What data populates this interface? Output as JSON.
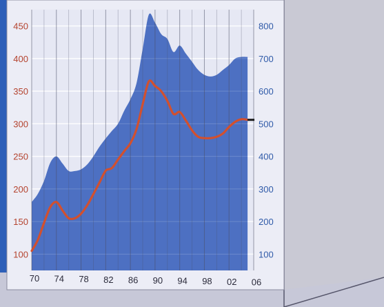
{
  "chart_data": {
    "type": "area",
    "title": "",
    "xlabel": "",
    "ylabel_left": "",
    "ylabel_right": "",
    "x_ticks": [
      "70",
      "74",
      "78",
      "82",
      "86",
      "90",
      "94",
      "98",
      "02",
      "06"
    ],
    "y_left_ticks": [
      "100",
      "150",
      "200",
      "250",
      "300",
      "350",
      "400",
      "450"
    ],
    "y_right_ticks": [
      "100",
      "200",
      "300",
      "400",
      "500",
      "600",
      "700",
      "800"
    ],
    "xlim": [
      1970,
      2006
    ],
    "ylim_left": [
      75,
      475
    ],
    "ylim_right": [
      50,
      850
    ],
    "grid": true,
    "colors": {
      "area": "#4d70c2",
      "line": "#d2502e",
      "left_ticks": "#b4432e",
      "right_ticks": "#2f5aa8",
      "x_ticks": "#2a2a3a",
      "panel": "#ecedf6",
      "frame_accent": "#2d5fb8"
    },
    "series": [
      {
        "axis": "right",
        "style": "area",
        "x": [
          1970,
          1971,
          1972,
          1973,
          1974,
          1975,
          1976,
          1977,
          1978,
          1979,
          1980,
          1981,
          1982,
          1983,
          1984,
          1985,
          1986,
          1987,
          1988,
          1989,
          1990,
          1991,
          1992,
          1993,
          1994,
          1995,
          1996,
          1997,
          1998,
          1999,
          2000,
          2001,
          2002,
          2003,
          2004,
          2005
        ],
        "y": [
          260,
          285,
          325,
          380,
          400,
          378,
          355,
          355,
          360,
          375,
          400,
          430,
          455,
          478,
          500,
          540,
          575,
          625,
          730,
          835,
          810,
          775,
          760,
          720,
          740,
          715,
          690,
          665,
          650,
          645,
          650,
          665,
          680,
          700,
          705,
          705
        ]
      },
      {
        "axis": "left",
        "style": "line",
        "x": [
          1970,
          1971,
          1972,
          1973,
          1974,
          1975,
          1976,
          1977,
          1978,
          1979,
          1980,
          1981,
          1982,
          1983,
          1984,
          1985,
          1986,
          1987,
          1988,
          1989,
          1990,
          1991,
          1992,
          1993,
          1994,
          1995,
          1996,
          1997,
          1998,
          1999,
          2000,
          2001,
          2002,
          2003,
          2004,
          2005
        ],
        "y": [
          105,
          122,
          148,
          172,
          180,
          167,
          155,
          155,
          162,
          175,
          192,
          210,
          228,
          232,
          245,
          258,
          270,
          292,
          330,
          365,
          358,
          350,
          335,
          315,
          318,
          305,
          290,
          280,
          278,
          278,
          280,
          285,
          295,
          303,
          307,
          306
        ]
      }
    ]
  }
}
